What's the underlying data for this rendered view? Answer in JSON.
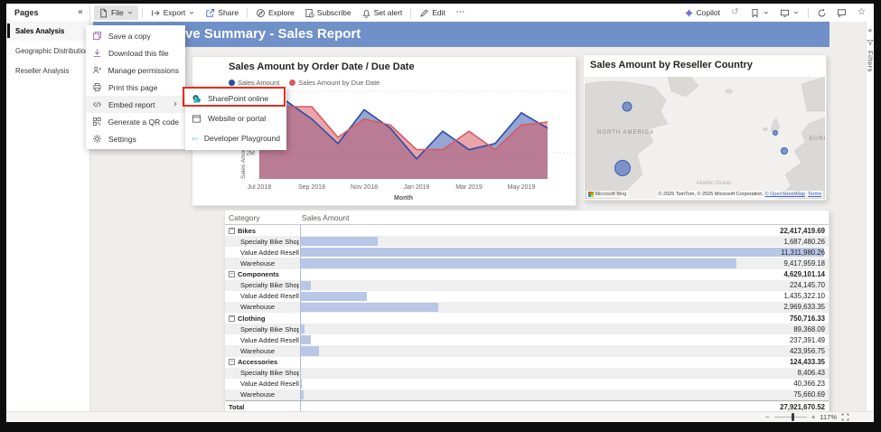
{
  "colors": {
    "banner_bg": "#6f90c8",
    "databar": "#b9c7e7",
    "annotation": "#e0301e",
    "canvas": "#efeeed",
    "series_blue": "#2a4da4",
    "series_red": "#d85a65"
  },
  "sidebar": {
    "header": "Pages",
    "items": [
      {
        "label": "Sales Analysis",
        "selected": true
      },
      {
        "label": "Geographic Distribution...",
        "selected": false
      },
      {
        "label": "Reseller Analysis",
        "selected": false
      }
    ]
  },
  "toolbar": {
    "left": [
      {
        "name": "file",
        "icon": "file-icon",
        "label": "File",
        "chevron": true,
        "active": true
      },
      {
        "name": "sep"
      },
      {
        "name": "export",
        "icon": "export-icon",
        "label": "Export",
        "chevron": true
      },
      {
        "name": "share",
        "icon": "share-icon",
        "label": "Share"
      },
      {
        "name": "sep"
      },
      {
        "name": "explore",
        "icon": "explore-icon",
        "label": "Explore"
      },
      {
        "name": "subscribe",
        "icon": "subscribe-icon",
        "label": "Subscribe"
      },
      {
        "name": "set-alert",
        "icon": "bell-icon",
        "label": "Set alert"
      },
      {
        "name": "sep"
      },
      {
        "name": "edit",
        "icon": "pencil-icon",
        "label": "Edit"
      },
      {
        "name": "more",
        "icon": "more-icon",
        "label": ""
      }
    ],
    "right": [
      {
        "name": "copilot",
        "icon": "copilot-icon",
        "label": "Copilot"
      },
      {
        "name": "reset",
        "icon": "reset-icon"
      },
      {
        "name": "bookmarks",
        "icon": "bookmark-icon",
        "chevron": true
      },
      {
        "name": "view",
        "icon": "monitor-icon",
        "chevron": true
      },
      {
        "name": "sep"
      },
      {
        "name": "refresh",
        "icon": "refresh-icon"
      },
      {
        "name": "comments",
        "icon": "comment-icon"
      },
      {
        "name": "favorite",
        "icon": "star-icon"
      }
    ]
  },
  "banner": {
    "title": "ve Summary - Sales Report"
  },
  "file_menu": {
    "items": [
      {
        "icon": "save-copy-icon",
        "label": "Save a copy"
      },
      {
        "icon": "download-icon",
        "label": "Download this file"
      },
      {
        "icon": "permissions-icon",
        "label": "Manage permissions"
      },
      {
        "icon": "print-icon",
        "label": "Print this page"
      },
      {
        "icon": "embed-icon",
        "label": "Embed report",
        "submenu": true
      },
      {
        "icon": "qr-icon",
        "label": "Generate a QR code"
      },
      {
        "icon": "settings-icon",
        "label": "Settings"
      }
    ]
  },
  "embed_submenu": {
    "items": [
      {
        "icon": "sharepoint-icon",
        "label": "SharePoint online",
        "highlighted": true
      },
      {
        "icon": "browser-window-icon",
        "label": "Website or portal",
        "highlighted": false
      },
      {
        "icon": "dev-playground-icon",
        "label": "Developer Playground",
        "highlighted": false
      }
    ]
  },
  "chart_data": [
    {
      "type": "area",
      "title": "Sales Amount by Order Date / Due Date",
      "x": [
        "Jul 2018",
        "Aug 2018",
        "Sep 2018",
        "Oct 2018",
        "Nov 2018",
        "Dec 2018",
        "Jan 2019",
        "Feb 2019",
        "Mar 2019",
        "Apr 2019",
        "May 2019",
        "Jun 2019"
      ],
      "x_ticks_shown": [
        "Jul 2018",
        "Sep 2018",
        "Nov 2018",
        "Jan 2019",
        "Mar 2019",
        "May 2019"
      ],
      "xlabel": "Month",
      "ylabel": "Sales Amount",
      "yticks": [
        "2M",
        "4M"
      ],
      "ylim_millions": [
        1.1,
        4.9
      ],
      "legend_position": "top",
      "grid": true,
      "series": [
        {
          "name": "Sales Amount",
          "color": "#2a4da4",
          "values_millions": [
            4.0,
            3.7,
            3.1,
            2.3,
            3.4,
            2.8,
            1.8,
            2.7,
            2.1,
            2.3,
            3.3,
            2.8
          ]
        },
        {
          "name": "Sales Amount by Due Date",
          "color": "#d85a65",
          "values_millions": [
            3.6,
            3.5,
            3.5,
            2.5,
            3.1,
            2.9,
            2.1,
            2.1,
            2.7,
            2.1,
            2.9,
            3.0
          ]
        }
      ]
    },
    {
      "type": "map",
      "title": "Sales Amount by Reseller Country",
      "map_labels": [
        "NORTH AMERICA",
        "EUROPE",
        "Atlantic Ocean"
      ],
      "bubbles": [
        {
          "region": "Canada",
          "x": 47,
          "y": 33,
          "r": 5
        },
        {
          "region": "United States",
          "x": 42,
          "y": 101,
          "r": 8.5
        },
        {
          "region": "United Kingdom",
          "x": 211,
          "y": 62,
          "r": 2.5
        },
        {
          "region": "France",
          "x": 221,
          "y": 82,
          "r": 3.5
        }
      ],
      "provider": "Microsoft Bing",
      "attribution_prefix": "© 2025 TomTom, © 2025 Microsoft Corporation, ",
      "attribution_link1": "© OpenStreetMap",
      "attribution_link2": "Terms"
    }
  ],
  "table": {
    "columns": [
      "Category",
      "Sales Amount"
    ],
    "rows": [
      {
        "label": "Bikes",
        "value": "22,417,419.69",
        "level": 0
      },
      {
        "label": "Specialty Bike Shop",
        "value": "1,687,480.26",
        "level": 1,
        "bar_pct": 14.9
      },
      {
        "label": "Value Added Reseller",
        "value": "11,311,980.26",
        "level": 1,
        "bar_pct": 100
      },
      {
        "label": "Warehouse",
        "value": "9,417,959.18",
        "level": 1,
        "bar_pct": 83.3
      },
      {
        "label": "Components",
        "value": "4,629,101.14",
        "level": 0
      },
      {
        "label": "Specialty Bike Shop",
        "value": "224,145.70",
        "level": 1,
        "bar_pct": 2.0
      },
      {
        "label": "Value Added Reseller",
        "value": "1,435,322.10",
        "level": 1,
        "bar_pct": 12.7
      },
      {
        "label": "Warehouse",
        "value": "2,969,633.35",
        "level": 1,
        "bar_pct": 26.3
      },
      {
        "label": "Clothing",
        "value": "750,716.33",
        "level": 0
      },
      {
        "label": "Specialty Bike Shop",
        "value": "89,368.09",
        "level": 1,
        "bar_pct": 0.8
      },
      {
        "label": "Value Added Reseller",
        "value": "237,391.49",
        "level": 1,
        "bar_pct": 2.1
      },
      {
        "label": "Warehouse",
        "value": "423,956.75",
        "level": 1,
        "bar_pct": 3.7
      },
      {
        "label": "Accessories",
        "value": "124,433.35",
        "level": 0
      },
      {
        "label": "Specialty Bike Shop",
        "value": "8,406.43",
        "level": 1,
        "bar_pct": 0.1
      },
      {
        "label": "Value Added Reseller",
        "value": "40,366.23",
        "level": 1,
        "bar_pct": 0.4
      },
      {
        "label": "Warehouse",
        "value": "75,660.69",
        "level": 1,
        "bar_pct": 0.7
      },
      {
        "label": "Total",
        "value": "27,921,670.52",
        "level": 0,
        "total": true
      }
    ]
  },
  "filters_pane": {
    "label": "Filters"
  },
  "status_bar": {
    "zoom_level": "117%"
  }
}
